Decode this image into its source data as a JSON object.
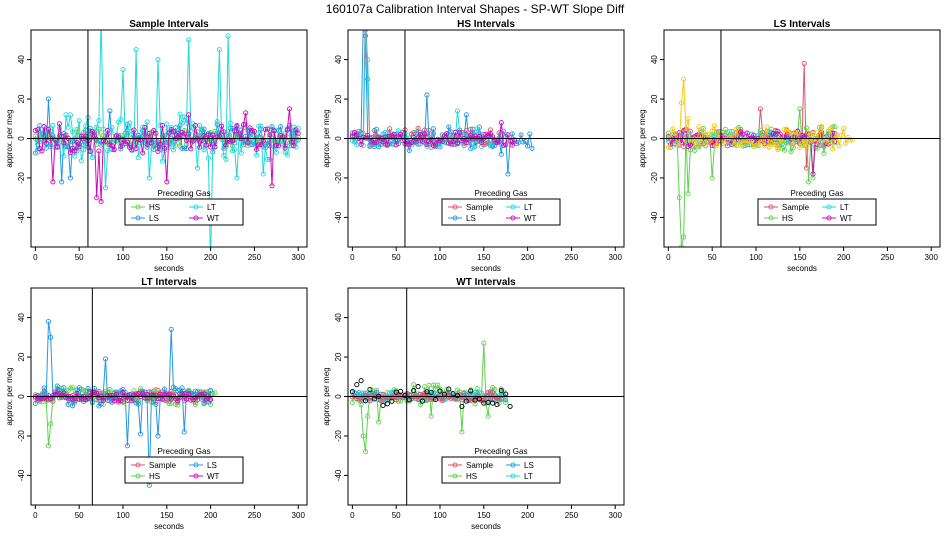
{
  "figure": {
    "title": "160107a   Calibration Interval Shapes - SP-WT Slope Diff"
  },
  "chart_data": [
    {
      "type": "scatter",
      "title": "Sample Intervals",
      "xlabel": "seconds",
      "ylabel": "approx. per meg",
      "xlim": [
        -5,
        310
      ],
      "ylim": [
        -55,
        55
      ],
      "xticks": [
        0,
        50,
        100,
        150,
        200,
        250,
        300
      ],
      "yticks": [
        -40,
        -20,
        0,
        20,
        40
      ],
      "vline": 60,
      "hline": 0,
      "legend": {
        "title": "Preceding Gas",
        "placement": "bottom-center",
        "columns": 2,
        "entries": [
          {
            "name": "HS",
            "color": "#61D04F"
          },
          {
            "name": "LT",
            "color": "#22D8D8"
          },
          {
            "name": "LS",
            "color": "#2297E6"
          },
          {
            "name": "WT",
            "color": "#CD0BBC"
          }
        ]
      },
      "series": [
        {
          "name": "HS",
          "color": "#61D04F",
          "mode": "noise",
          "x": [
            0,
            300
          ],
          "amp": 4,
          "spikes": []
        },
        {
          "name": "LS",
          "color": "#2297E6",
          "mode": "noise",
          "x": [
            0,
            300
          ],
          "amp": 6,
          "spikes": [
            [
              15,
              20
            ],
            [
              30,
              -22
            ],
            [
              40,
              -20
            ],
            [
              85,
              14
            ]
          ]
        },
        {
          "name": "LT",
          "color": "#22D8D8",
          "mode": "noise",
          "x": [
            0,
            300
          ],
          "amp": 10,
          "spikes": [
            [
              75,
              60
            ],
            [
              80,
              -25
            ],
            [
              100,
              35
            ],
            [
              115,
              45
            ],
            [
              130,
              -20
            ],
            [
              140,
              40
            ],
            [
              175,
              50
            ],
            [
              185,
              -15
            ],
            [
              200,
              -65
            ],
            [
              210,
              45
            ],
            [
              220,
              52
            ],
            [
              230,
              -20
            ],
            [
              260,
              -18
            ]
          ]
        },
        {
          "name": "WT",
          "color": "#CD0BBC",
          "mode": "noise",
          "x": [
            0,
            300
          ],
          "amp": 6,
          "spikes": [
            [
              20,
              -22
            ],
            [
              70,
              -30
            ],
            [
              75,
              -32
            ],
            [
              150,
              -22
            ],
            [
              175,
              12
            ],
            [
              240,
              13
            ],
            [
              270,
              -24
            ],
            [
              290,
              15
            ]
          ]
        }
      ]
    },
    {
      "type": "scatter",
      "title": "HS Intervals",
      "xlabel": "seconds",
      "ylabel": "approx. per meg",
      "xlim": [
        -5,
        310
      ],
      "ylim": [
        -55,
        55
      ],
      "xticks": [
        0,
        50,
        100,
        150,
        200,
        250,
        300
      ],
      "yticks": [
        -40,
        -20,
        0,
        20,
        40
      ],
      "vline": 60,
      "hline": 0,
      "legend": {
        "title": "Preceding Gas",
        "placement": "bottom-center",
        "columns": 2,
        "entries": [
          {
            "name": "Sample",
            "color": "#DF536B"
          },
          {
            "name": "LT",
            "color": "#22D8D8"
          },
          {
            "name": "LS",
            "color": "#2297E6"
          },
          {
            "name": "WT",
            "color": "#CD0BBC"
          }
        ]
      },
      "series": [
        {
          "name": "Sample",
          "color": "#DF536B",
          "mode": "noise",
          "x": [
            0,
            170
          ],
          "amp": 4,
          "spikes": [
            [
              15,
              70
            ],
            [
              18,
              30
            ]
          ]
        },
        {
          "name": "LS",
          "color": "#2297E6",
          "mode": "noise",
          "x": [
            0,
            205
          ],
          "amp": 5,
          "spikes": [
            [
              13,
              60
            ],
            [
              16,
              52
            ],
            [
              85,
              22
            ],
            [
              130,
              12
            ],
            [
              170,
              -8
            ],
            [
              178,
              -18
            ]
          ]
        },
        {
          "name": "LT",
          "color": "#22D8D8",
          "mode": "noise",
          "x": [
            0,
            170
          ],
          "amp": 4,
          "spikes": [
            [
              14,
              55
            ],
            [
              17,
              40
            ],
            [
              120,
              14
            ]
          ]
        },
        {
          "name": "WT",
          "color": "#CD0BBC",
          "mode": "noise",
          "x": [
            0,
            185
          ],
          "amp": 3,
          "spikes": [
            [
              170,
              8
            ]
          ]
        }
      ]
    },
    {
      "type": "scatter",
      "title": "LS Intervals",
      "xlabel": "seconds",
      "ylabel": "approx. per meg",
      "xlim": [
        -5,
        310
      ],
      "ylim": [
        -55,
        55
      ],
      "xticks": [
        0,
        50,
        100,
        150,
        200,
        250,
        300
      ],
      "yticks": [
        -40,
        -20,
        0,
        20,
        40
      ],
      "vline": 60,
      "hline": 0,
      "legend": {
        "title": "Preceding Gas",
        "placement": "bottom-center",
        "columns": 2,
        "entries": [
          {
            "name": "Sample",
            "color": "#DF536B"
          },
          {
            "name": "LT",
            "color": "#22D8D8"
          },
          {
            "name": "HS",
            "color": "#61D04F"
          },
          {
            "name": "WT",
            "color": "#CD0BBC"
          }
        ]
      },
      "series": [
        {
          "name": "Sample",
          "color": "#DF536B",
          "mode": "noise",
          "x": [
            0,
            190
          ],
          "amp": 4,
          "spikes": [
            [
              105,
              15
            ],
            [
              155,
              38
            ],
            [
              158,
              -15
            ]
          ]
        },
        {
          "name": "HS",
          "color": "#61D04F",
          "mode": "noise",
          "x": [
            0,
            190
          ],
          "amp": 6,
          "spikes": [
            [
              12,
              -30
            ],
            [
              15,
              -55
            ],
            [
              18,
              -50
            ],
            [
              22,
              -28
            ],
            [
              50,
              -20
            ],
            [
              150,
              15
            ],
            [
              160,
              -22
            ],
            [
              165,
              -20
            ]
          ]
        },
        {
          "name": "LT",
          "color": "#22D8D8",
          "mode": "noise",
          "x": [
            0,
            190
          ],
          "amp": 3,
          "spikes": []
        },
        {
          "name": "WT",
          "color": "#CD0BBC",
          "mode": "noise",
          "x": [
            0,
            190
          ],
          "amp": 4,
          "spikes": [
            [
              165,
              -18
            ]
          ]
        },
        {
          "name": "",
          "color": "#F5C710",
          "mode": "noise",
          "x": [
            0,
            210
          ],
          "amp": 5,
          "spikes": [
            [
              15,
              18
            ],
            [
              18,
              30
            ],
            [
              22,
              10
            ]
          ]
        }
      ]
    },
    {
      "type": "scatter",
      "title": "LT Intervals",
      "xlabel": "seconds",
      "ylabel": "approx. per meg",
      "xlim": [
        -5,
        310
      ],
      "ylim": [
        -55,
        55
      ],
      "xticks": [
        0,
        50,
        100,
        150,
        200,
        250,
        300
      ],
      "yticks": [
        -40,
        -20,
        0,
        20,
        40
      ],
      "vline": 65,
      "hline": 0,
      "legend": {
        "title": "Preceding Gas",
        "placement": "bottom-center",
        "columns": 2,
        "entries": [
          {
            "name": "Sample",
            "color": "#DF536B"
          },
          {
            "name": "LS",
            "color": "#2297E6"
          },
          {
            "name": "HS",
            "color": "#61D04F"
          },
          {
            "name": "WT",
            "color": "#CD0BBC"
          }
        ]
      },
      "series": [
        {
          "name": "Sample",
          "color": "#DF536B",
          "mode": "noise",
          "x": [
            0,
            200
          ],
          "amp": 3,
          "spikes": []
        },
        {
          "name": "HS",
          "color": "#61D04F",
          "mode": "noise",
          "x": [
            0,
            205
          ],
          "amp": 4,
          "spikes": [
            [
              15,
              -25
            ],
            [
              18,
              -14
            ]
          ]
        },
        {
          "name": "LS",
          "color": "#2297E6",
          "mode": "noise",
          "x": [
            0,
            200
          ],
          "amp": 5,
          "spikes": [
            [
              15,
              38
            ],
            [
              18,
              30
            ],
            [
              80,
              19
            ],
            [
              105,
              -25
            ],
            [
              120,
              -19
            ],
            [
              130,
              -45
            ],
            [
              140,
              -20
            ],
            [
              155,
              34
            ],
            [
              170,
              -18
            ]
          ]
        },
        {
          "name": "WT",
          "color": "#CD0BBC",
          "mode": "noise",
          "x": [
            0,
            200
          ],
          "amp": 2,
          "spikes": []
        }
      ]
    },
    {
      "type": "scatter",
      "title": "WT Intervals",
      "xlabel": "seconds",
      "ylabel": "approx. per meg",
      "xlim": [
        -5,
        310
      ],
      "ylim": [
        -55,
        55
      ],
      "xticks": [
        0,
        50,
        100,
        150,
        200,
        250,
        300
      ],
      "yticks": [
        -40,
        -20,
        0,
        20,
        40
      ],
      "vline": 62,
      "hline": 0,
      "legend": {
        "title": "Preceding Gas",
        "placement": "bottom-center",
        "columns": 2,
        "entries": [
          {
            "name": "Sample",
            "color": "#DF536B"
          },
          {
            "name": "LS",
            "color": "#2297E6"
          },
          {
            "name": "HS",
            "color": "#61D04F"
          },
          {
            "name": "LT",
            "color": "#22D8D8"
          }
        ]
      },
      "series": [
        {
          "name": "HS",
          "color": "#61D04F",
          "mode": "noise",
          "x": [
            0,
            175
          ],
          "amp": 5,
          "spikes": [
            [
              12,
              -20
            ],
            [
              15,
              -28
            ],
            [
              18,
              -10
            ],
            [
              30,
              -13
            ],
            [
              90,
              -10
            ],
            [
              125,
              -18
            ],
            [
              150,
              27
            ],
            [
              155,
              -10
            ]
          ]
        },
        {
          "name": "LS",
          "color": "#2297E6",
          "mode": "noise",
          "x": [
            0,
            175
          ],
          "amp": 2,
          "spikes": []
        },
        {
          "name": "LT",
          "color": "#22D8D8",
          "mode": "noise",
          "x": [
            0,
            175
          ],
          "amp": 2,
          "spikes": []
        },
        {
          "name": "Sample",
          "color": "#DF536B",
          "mode": "noise",
          "x": [
            0,
            170
          ],
          "amp": 2,
          "spikes": []
        },
        {
          "name": "",
          "color": "#000000",
          "mode": "points",
          "x": [
            0,
            180
          ],
          "amp": 4,
          "spikes": [
            [
              5,
              6
            ],
            [
              10,
              8
            ],
            [
              75,
              5
            ],
            [
              125,
              -5
            ],
            [
              170,
              3
            ],
            [
              178,
              -6
            ],
            [
              180,
              -5
            ]
          ]
        }
      ]
    }
  ]
}
